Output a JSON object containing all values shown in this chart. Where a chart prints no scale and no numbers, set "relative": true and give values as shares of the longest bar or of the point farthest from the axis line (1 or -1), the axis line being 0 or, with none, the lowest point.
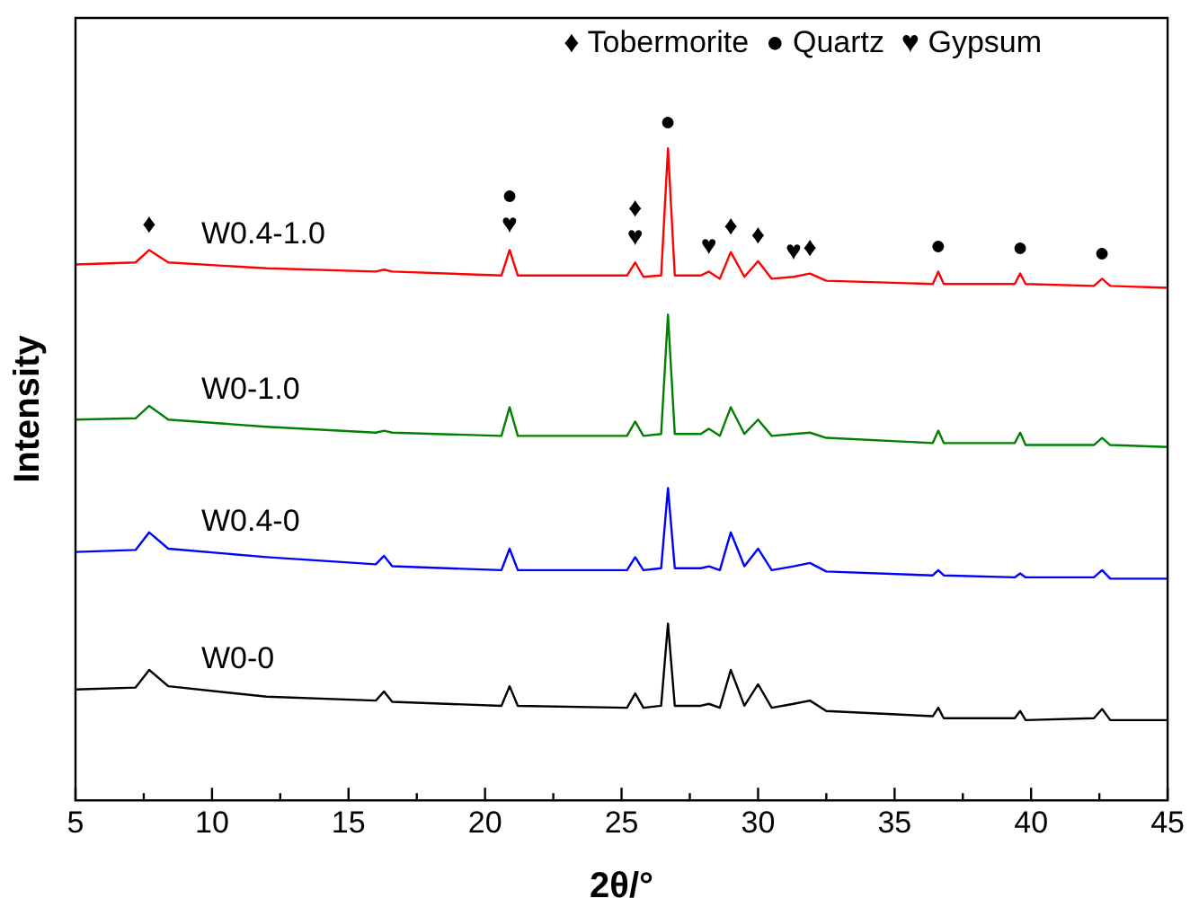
{
  "chart_data": {
    "type": "line",
    "relative": true,
    "xlabel": "2θ/°",
    "ylabel": "Intensity",
    "legend": false,
    "grid": false,
    "marker": "none",
    "line_style": "solid",
    "x": [
      5,
      7.2,
      7.7,
      8.4,
      12,
      16,
      16.3,
      16.6,
      20.6,
      20.9,
      21.2,
      25.2,
      25.5,
      25.8,
      26.45,
      26.7,
      26.95,
      27.9,
      28.2,
      28.6,
      29.0,
      29.5,
      30.0,
      30.5,
      31.3,
      31.9,
      32.5,
      36.4,
      36.6,
      36.8,
      39.4,
      39.6,
      39.8,
      42.3,
      42.6,
      42.9,
      45
    ],
    "xlim": [
      5,
      45
    ],
    "xticks": [
      5,
      {
        "value": 7.5,
        "label": null
      },
      10,
      {
        "value": 12.5,
        "label": null
      },
      15,
      {
        "value": 17.5,
        "label": null
      },
      20,
      {
        "value": 22.5,
        "label": null
      },
      25,
      {
        "value": 27.5,
        "label": null
      },
      30,
      {
        "value": 32.5,
        "label": null
      },
      35,
      {
        "value": 37.5,
        "label": null
      },
      40,
      {
        "value": 42.5,
        "label": null
      },
      45
    ],
    "series": [
      {
        "name": "W0.4-1.0",
        "color": "#ff0000",
        "values": [
          0.822,
          0.825,
          0.844,
          0.825,
          0.816,
          0.811,
          0.814,
          0.811,
          0.805,
          0.844,
          0.805,
          0.805,
          0.825,
          0.803,
          0.805,
          1,
          0.805,
          0.805,
          0.811,
          0.8,
          0.841,
          0.803,
          0.827,
          0.8,
          0.803,
          0.808,
          0.797,
          0.792,
          0.811,
          0.792,
          0.792,
          0.808,
          0.792,
          0.789,
          0.8,
          0.789,
          0.786
        ]
      },
      {
        "name": "W0-1.0",
        "color": "#008000",
        "values": [
          0.584,
          0.586,
          0.605,
          0.584,
          0.573,
          0.564,
          0.567,
          0.564,
          0.559,
          0.603,
          0.559,
          0.559,
          0.581,
          0.559,
          0.562,
          0.745,
          0.562,
          0.562,
          0.57,
          0.559,
          0.603,
          0.562,
          0.584,
          0.559,
          0.562,
          0.564,
          0.556,
          0.548,
          0.567,
          0.548,
          0.548,
          0.564,
          0.545,
          0.545,
          0.556,
          0.545,
          0.542
        ]
      },
      {
        "name": "W0.4-0",
        "color": "#0000ff",
        "values": [
          0.381,
          0.384,
          0.411,
          0.386,
          0.373,
          0.362,
          0.375,
          0.359,
          0.353,
          0.386,
          0.353,
          0.353,
          0.373,
          0.353,
          0.356,
          0.479,
          0.356,
          0.356,
          0.359,
          0.353,
          0.411,
          0.359,
          0.386,
          0.353,
          0.359,
          0.364,
          0.351,
          0.345,
          0.353,
          0.345,
          0.342,
          0.348,
          0.342,
          0.342,
          0.353,
          0.34,
          0.34
        ]
      },
      {
        "name": "W0-0",
        "color": "#000000",
        "values": [
          0.17,
          0.173,
          0.2,
          0.175,
          0.159,
          0.153,
          0.167,
          0.151,
          0.145,
          0.175,
          0.145,
          0.142,
          0.164,
          0.142,
          0.145,
          0.271,
          0.145,
          0.145,
          0.148,
          0.142,
          0.2,
          0.145,
          0.178,
          0.142,
          0.148,
          0.153,
          0.137,
          0.129,
          0.142,
          0.126,
          0.126,
          0.137,
          0.123,
          0.126,
          0.14,
          0.123,
          0.123
        ]
      }
    ],
    "annotations": [
      "♦ Tobermorite  ● Quartz  ♥ Gypsum",
      {
        "text": "♦",
        "x": 7.7,
        "y": 0.844
      },
      {
        "text": "♥",
        "x": 20.9,
        "y": 0.844
      },
      {
        "text": "●",
        "x": 20.9,
        "y": 0.844
      },
      {
        "text": "♥",
        "x": 25.5,
        "y": 0.825
      },
      {
        "text": "♦",
        "x": 25.5,
        "y": 0.825
      },
      {
        "text": "●",
        "x": 26.7,
        "y": 1
      },
      {
        "text": "♥",
        "x": 28.2,
        "y": 0.811
      },
      {
        "text": "♦",
        "x": 29.0,
        "y": 0.841
      },
      {
        "text": "♦",
        "x": 30.0,
        "y": 0.827
      },
      {
        "text": "♥",
        "x": 31.3,
        "y": 0.803
      },
      {
        "text": "♦",
        "x": 31.9,
        "y": 0.808
      },
      {
        "text": "●",
        "x": 36.6,
        "y": 0.811
      },
      {
        "text": "●",
        "x": 39.6,
        "y": 0.808
      },
      {
        "text": "●",
        "x": 42.6,
        "y": 0.8
      }
    ]
  }
}
